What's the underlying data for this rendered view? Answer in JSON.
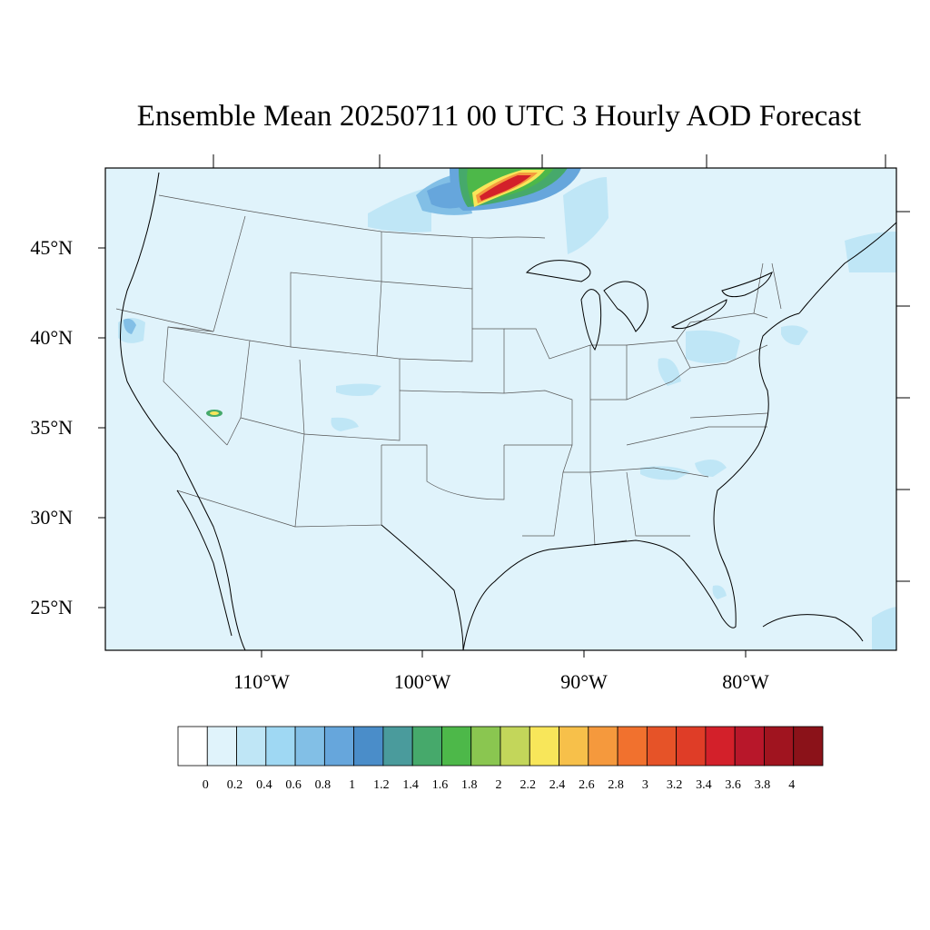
{
  "title": "Ensemble Mean 20250711 00 UTC 3 Hourly AOD Forecast",
  "lat_labels": [
    "45°N",
    "40°N",
    "35°N",
    "30°N",
    "25°N"
  ],
  "lon_labels": [
    "110°W",
    "100°W",
    "90°W",
    "80°W"
  ],
  "colorbar": {
    "labels": [
      "0",
      "0.2",
      "0.4",
      "0.6",
      "0.8",
      "1",
      "1.2",
      "1.4",
      "1.6",
      "1.8",
      "2",
      "2.2",
      "2.4",
      "2.6",
      "2.8",
      "3",
      "3.2",
      "3.4",
      "3.6",
      "3.8",
      "4"
    ],
    "colors": [
      "#ffffff",
      "#e0f3fb",
      "#bfe6f6",
      "#9fd8f3",
      "#82bfe6",
      "#66a6dc",
      "#4a8dc9",
      "#4a9b9c",
      "#46a96b",
      "#4db849",
      "#8ac650",
      "#c3d65a",
      "#f8e65a",
      "#f7c04a",
      "#f5993d",
      "#f1712e",
      "#e65328",
      "#df3d27",
      "#d3202a",
      "#b8172a",
      "#a0141f",
      "#8b1219"
    ]
  },
  "map": {
    "background_aod": 0.1,
    "background_color": "#e0f3fb",
    "plume_location": "Northern Minnesota / Canada border"
  }
}
